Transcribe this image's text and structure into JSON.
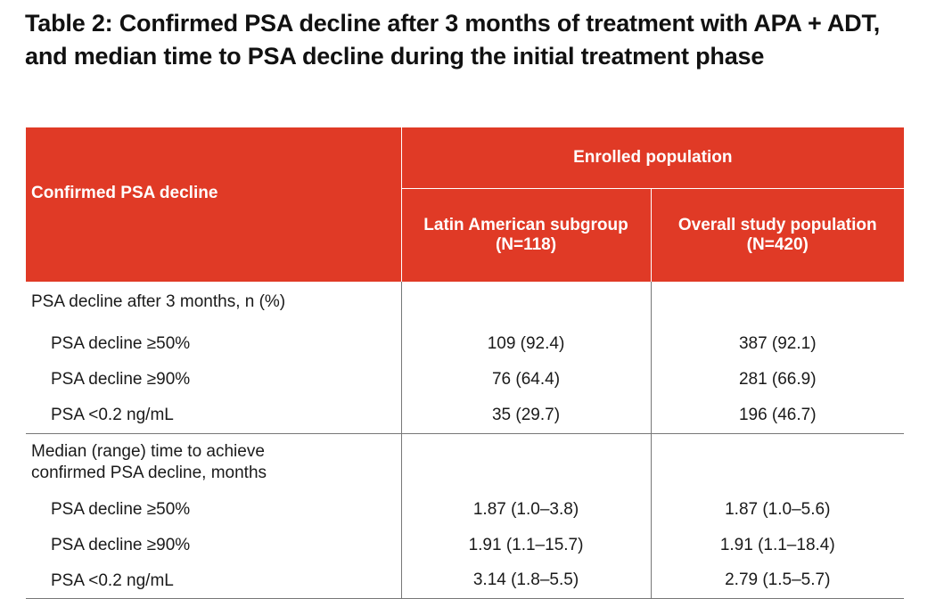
{
  "title": "Table 2: Confirmed PSA decline after 3 months of treatment with APA + ADT, and median time to PSA decline during the initial treatment phase",
  "header": {
    "row_label": "Confirmed PSA decline",
    "group_label": "Enrolled population",
    "col1_line1": "Latin American subgroup",
    "col1_line2": "(N=118)",
    "col2_line1": "Overall study population",
    "col2_line2": "(N=420)"
  },
  "colors": {
    "header_bg": "#e03a26",
    "header_text": "#ffffff",
    "rule": "#777777"
  },
  "sections": [
    {
      "label": "PSA decline after 3 months, n (%)",
      "rows": [
        {
          "label": "PSA decline ≥50%",
          "latin": "109 (92.4)",
          "overall": "387 (92.1)"
        },
        {
          "label": "PSA decline ≥90%",
          "latin": "76 (64.4)",
          "overall": "281 (66.9)"
        },
        {
          "label": "PSA <0.2 ng/mL",
          "latin": "35 (29.7)",
          "overall": "196 (46.7)"
        }
      ]
    },
    {
      "label_line1": "Median (range) time to achieve",
      "label_line2": "confirmed PSA decline, months",
      "rows": [
        {
          "label": "PSA decline ≥50%",
          "latin": "1.87 (1.0–3.8)",
          "overall": "1.87 (1.0–5.6)"
        },
        {
          "label": "PSA decline ≥90%",
          "latin": "1.91 (1.1–15.7)",
          "overall": "1.91 (1.1–18.4)"
        },
        {
          "label": "PSA <0.2 ng/mL",
          "latin": "3.14 (1.8–5.5)",
          "overall": "2.79 (1.5–5.7)"
        }
      ]
    }
  ]
}
